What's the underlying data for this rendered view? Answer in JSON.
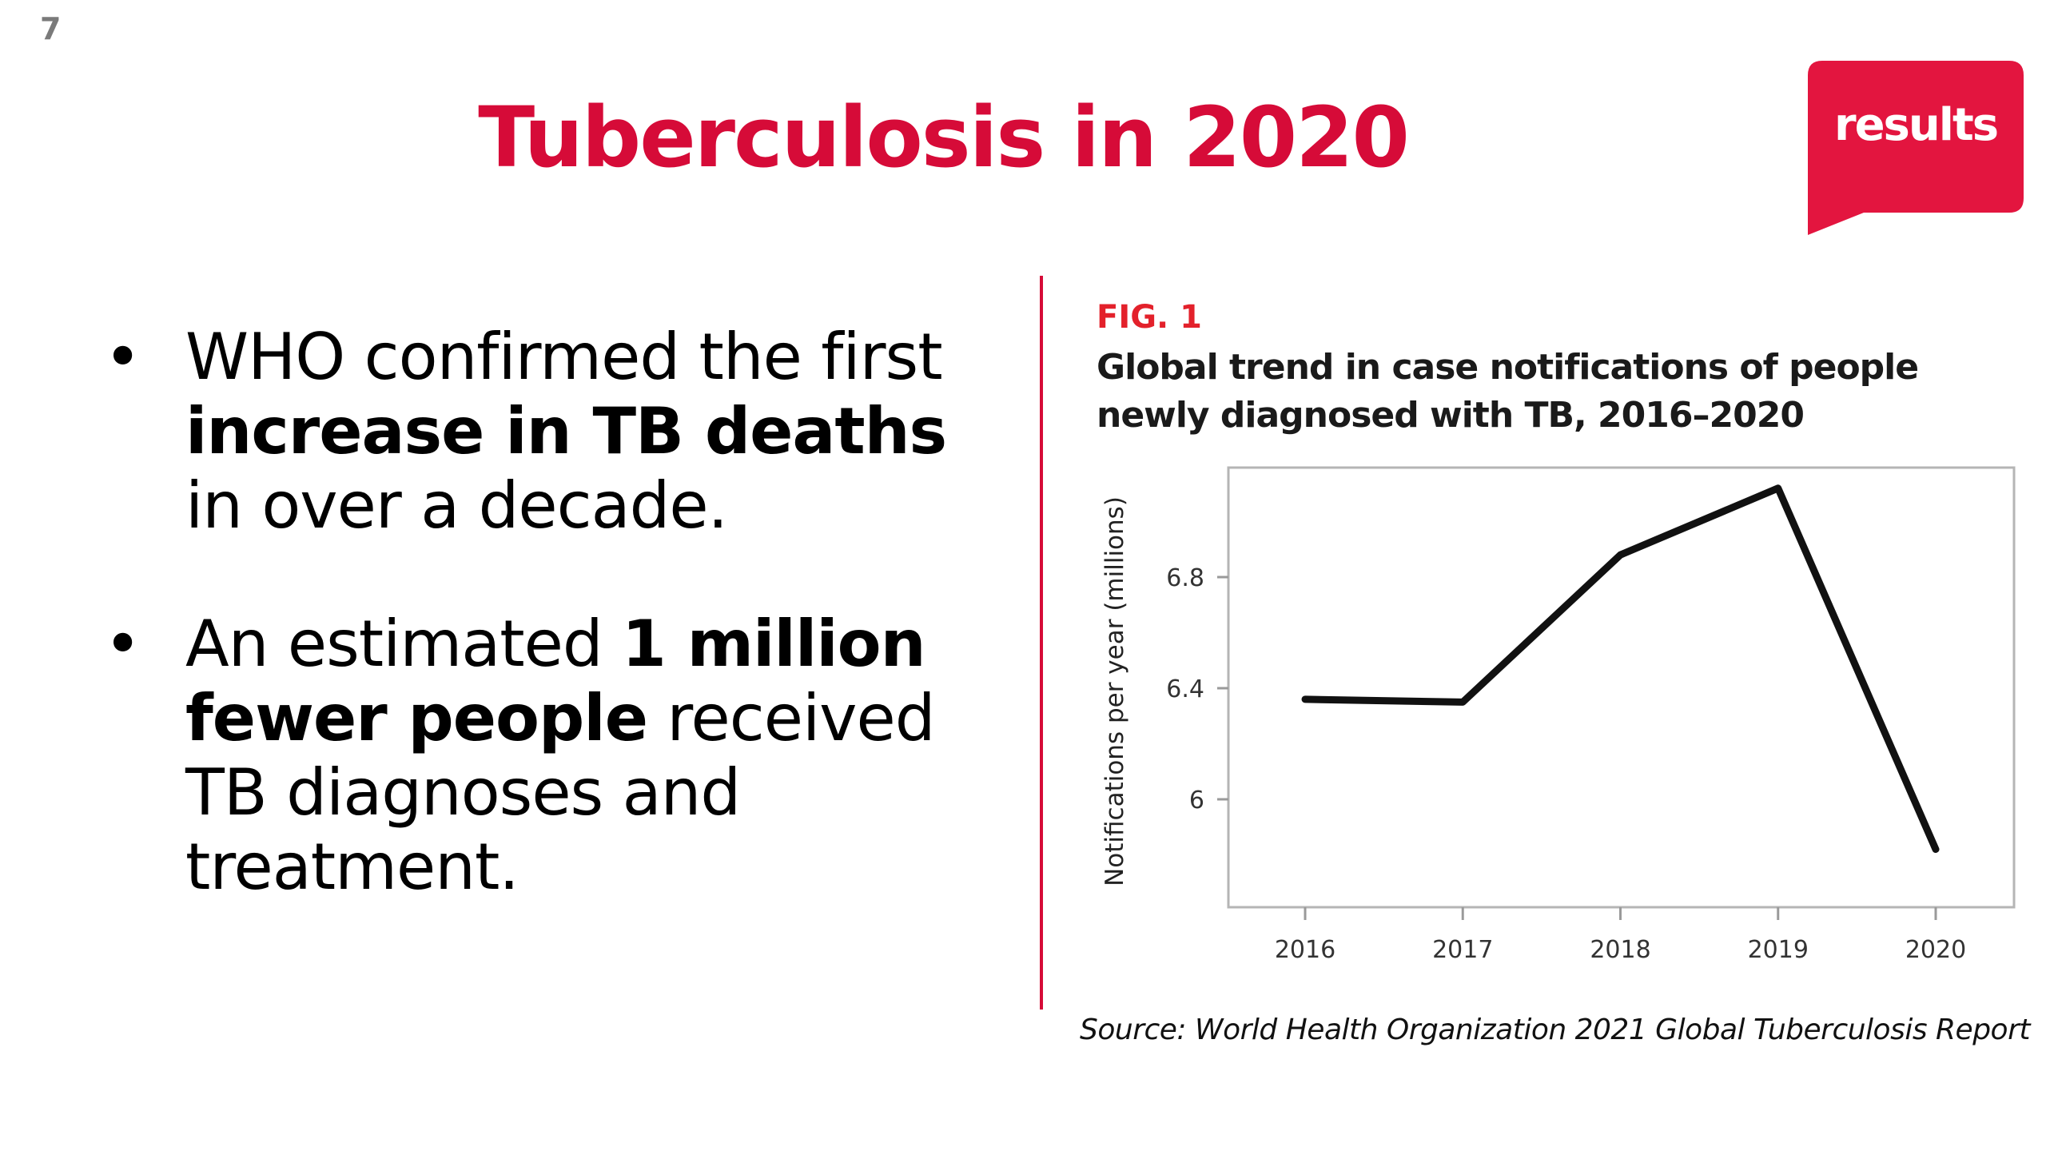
{
  "slide": {
    "number": "7",
    "title": "Tuberculosis in 2020",
    "logo_text": "results",
    "accent_color": "#d60b38"
  },
  "bullets": [
    {
      "parts": [
        {
          "text": "WHO confirmed the first ",
          "bold": false
        },
        {
          "text": "increase in TB deaths",
          "bold": true
        },
        {
          "text": " in over a decade.",
          "bold": false
        }
      ]
    },
    {
      "parts": [
        {
          "text": "An estimated ",
          "bold": false
        },
        {
          "text": "1 million fewer people",
          "bold": true
        },
        {
          "text": " received TB diagnoses and treatment.",
          "bold": false
        }
      ]
    }
  ],
  "figure": {
    "label": "FIG. 1",
    "title": "Global trend in case notifications of people newly diagnosed with TB, 2016–2020",
    "source": "Source: World Health Organization 2021 Global Tuberculosis Report"
  },
  "chart_data": {
    "type": "line",
    "title": "Global trend in case notifications of people newly diagnosed with TB, 2016–2020",
    "xlabel": "",
    "ylabel": "Notifications per year (millions)",
    "categories": [
      "2016",
      "2017",
      "2018",
      "2019",
      "2020"
    ],
    "series": [
      {
        "values": [
          6.36,
          6.35,
          6.88,
          7.12,
          5.82
        ],
        "color": "#111111"
      }
    ],
    "yticks": [
      6,
      6.4,
      6.8
    ],
    "ytick_labels": [
      "6",
      "6.4",
      "6.8"
    ],
    "ylim": [
      5.8,
      7.15
    ],
    "grid": false,
    "legend": "none"
  }
}
